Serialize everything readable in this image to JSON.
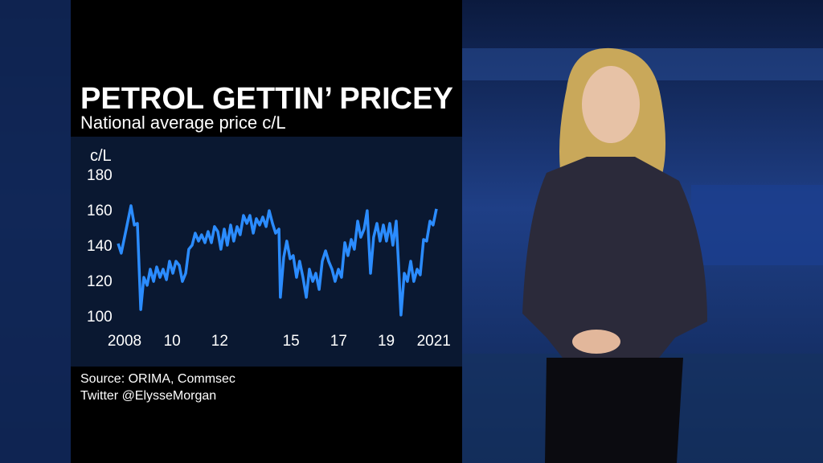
{
  "chart_data": {
    "type": "line",
    "title": "PETROL GETTIN’ PRICEY",
    "subtitle": "National average price c/L",
    "y_label": "c/L",
    "source": "Source: ORIMA, Commsec",
    "credit": "Twitter @ElysseMorgan",
    "color": "#2b8cff",
    "x": [
      2007.73,
      2007.86,
      2008.07,
      2008.27,
      2008.41,
      2008.54,
      2008.68,
      2008.81,
      2008.95,
      2009.08,
      2009.22,
      2009.35,
      2009.49,
      2009.62,
      2009.76,
      2009.89,
      2010.03,
      2010.16,
      2010.3,
      2010.43,
      2010.57,
      2010.7,
      2010.84,
      2010.97,
      2011.11,
      2011.24,
      2011.38,
      2011.51,
      2011.65,
      2011.78,
      2011.92,
      2012.05,
      2012.19,
      2012.32,
      2012.46,
      2012.59,
      2012.73,
      2012.86,
      2013.0,
      2013.14,
      2013.27,
      2013.41,
      2013.54,
      2013.68,
      2013.81,
      2013.95,
      2014.08,
      2014.22,
      2014.35,
      2014.49,
      2014.55,
      2014.69,
      2014.82,
      2014.96,
      2015.09,
      2015.23,
      2015.36,
      2015.5,
      2015.64,
      2015.77,
      2015.91,
      2016.04,
      2016.18,
      2016.31,
      2016.45,
      2016.58,
      2016.72,
      2016.85,
      2016.99,
      2017.12,
      2017.26,
      2017.39,
      2017.53,
      2017.66,
      2017.8,
      2017.93,
      2018.07,
      2018.2,
      2018.34,
      2018.47,
      2018.61,
      2018.74,
      2018.88,
      2019.01,
      2019.15,
      2019.28,
      2019.42,
      2019.52,
      2019.62,
      2019.76,
      2019.89,
      2020.03,
      2020.16,
      2020.3,
      2020.43,
      2020.57,
      2020.7,
      2020.84,
      2020.97,
      2021.11
    ],
    "values": [
      140.9,
      135.5,
      149.1,
      162.3,
      151.4,
      152.3,
      103.6,
      121.8,
      117.3,
      126.4,
      119.5,
      127.7,
      121.8,
      126.4,
      120.5,
      130.9,
      124.1,
      130.9,
      128.6,
      119.5,
      124.1,
      137.7,
      140,
      146.8,
      142.3,
      145.9,
      141.4,
      147.7,
      141.4,
      150.5,
      147.7,
      137.7,
      149.1,
      140,
      151.4,
      142.3,
      150.5,
      145.9,
      156.8,
      152.3,
      156.8,
      146.8,
      155,
      151.4,
      155.9,
      150.5,
      159.5,
      152.3,
      146.8,
      149.1,
      110.5,
      133.2,
      142.3,
      132.3,
      134.1,
      121.8,
      130.9,
      121.8,
      110.5,
      126.4,
      119.5,
      124.1,
      115,
      130.9,
      136.8,
      130.9,
      126.4,
      119.5,
      126.4,
      121.8,
      141.4,
      134.1,
      143.2,
      137.7,
      153.6,
      144.5,
      149.1,
      159.5,
      124.1,
      144.5,
      152.3,
      142.3,
      151.4,
      142.3,
      152.3,
      140,
      153.6,
      128.6,
      100.5,
      124.1,
      119.5,
      130.9,
      119.5,
      126.4,
      123.2,
      143.2,
      142.3,
      153.6,
      151.4,
      160.5
    ],
    "xlim": [
      2007.73,
      2021.11
    ],
    "xticks": [
      2008,
      {
        "value": 2010,
        "label": "10"
      },
      {
        "value": 2012,
        "label": "12"
      },
      {
        "value": 2015,
        "label": "15"
      },
      {
        "value": 2017,
        "label": "17"
      },
      {
        "value": 2019,
        "label": "19"
      },
      2021
    ],
    "ylim": [
      100,
      180
    ],
    "yticks": [
      100,
      120,
      140,
      160,
      180
    ]
  }
}
